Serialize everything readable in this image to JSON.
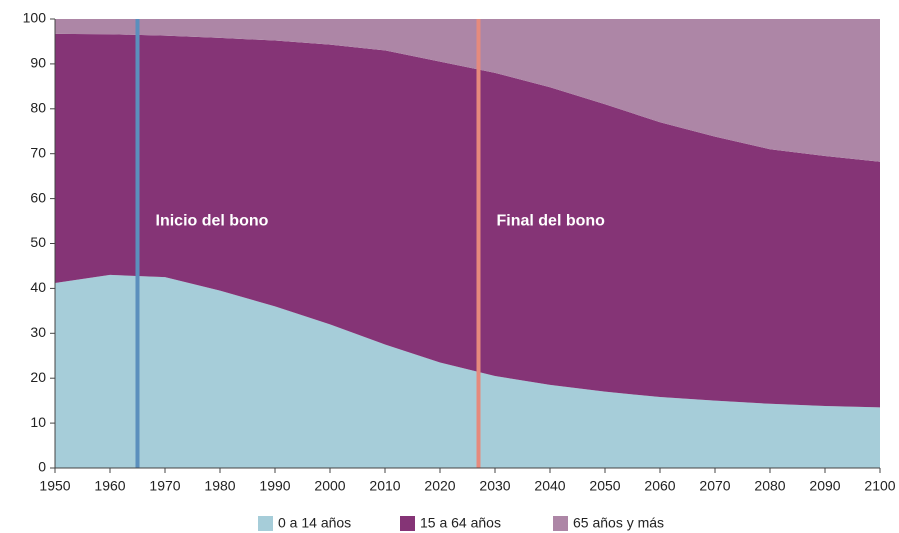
{
  "chart_data": {
    "type": "stacked_area",
    "x": [
      1950,
      1960,
      1970,
      1980,
      1990,
      2000,
      2010,
      2020,
      2030,
      2040,
      2050,
      2060,
      2070,
      2080,
      2090,
      2100
    ],
    "series": [
      {
        "name": "0 a 14 años",
        "color": "#a6cdd9",
        "values": [
          41.2,
          43,
          42.5,
          39.5,
          36,
          32,
          27.5,
          23.5,
          20.5,
          18.5,
          17,
          15.8,
          15,
          14.3,
          13.8,
          13.5
        ]
      },
      {
        "name": "15 a 64 años",
        "color": "#853476",
        "values": [
          55.5,
          53.6,
          53.8,
          56.3,
          59.2,
          62.3,
          65.5,
          67,
          67.5,
          66.3,
          64,
          61.2,
          58.8,
          56.7,
          55.7,
          54.7
        ]
      },
      {
        "name": "65 años y más",
        "color": "#ad86a6",
        "values": [
          3.3,
          3.4,
          3.7,
          4.2,
          4.8,
          5.7,
          7,
          9.5,
          12,
          15.2,
          19,
          23,
          26.2,
          29,
          30.5,
          31.8
        ]
      }
    ],
    "annotations": [
      {
        "text": "Inicio del bono",
        "x": 1965,
        "color": "#5b8fbd"
      },
      {
        "text": "Final del bono",
        "x": 2027,
        "color": "#e58a7d"
      }
    ],
    "xlim": [
      1950,
      2100
    ],
    "xticks": [
      1950,
      1960,
      1970,
      1980,
      1990,
      2000,
      2010,
      2020,
      2030,
      2040,
      2050,
      2060,
      2070,
      2080,
      2090,
      2100
    ],
    "ylim": [
      0,
      100
    ],
    "yticks": [
      0,
      10,
      20,
      30,
      40,
      50,
      60,
      70,
      80,
      90,
      100
    ],
    "legend": "bottom"
  }
}
